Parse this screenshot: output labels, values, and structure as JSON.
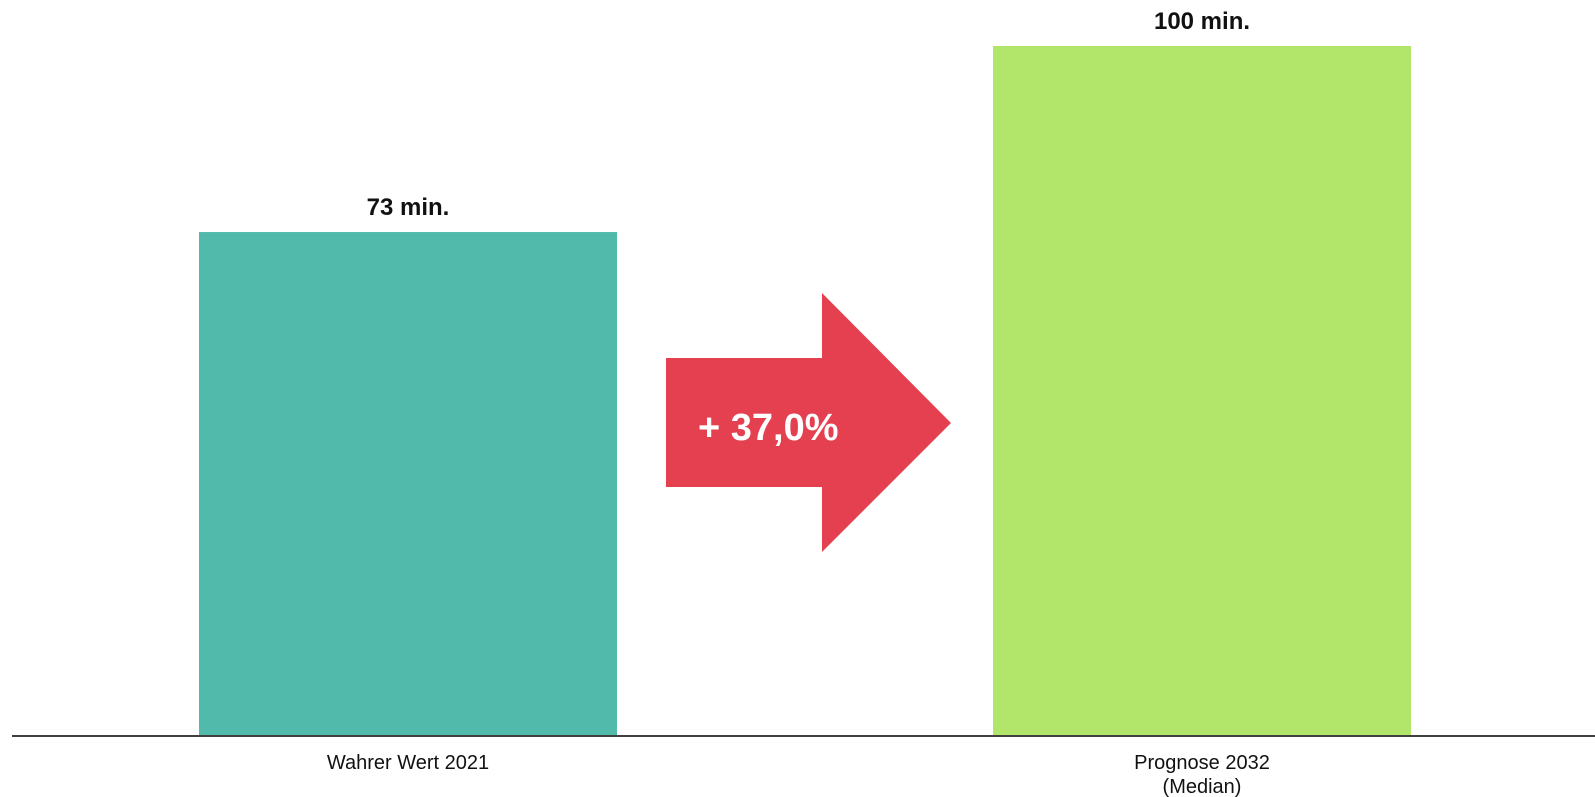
{
  "chart_data": {
    "type": "bar",
    "categories": [
      "Wahrer Wert 2021",
      "Prognose 2032\n(Median)"
    ],
    "values": [
      73,
      100
    ],
    "value_labels": [
      "73 min.",
      "100 min."
    ],
    "unit": "min.",
    "colors": [
      "#52baab",
      "#b2e66a"
    ],
    "axis_color": "#000000",
    "ylim": [
      0,
      100
    ],
    "grid": false,
    "legend": "none",
    "title": "",
    "xlabel": "",
    "ylabel": "",
    "annotation": {
      "type": "arrow",
      "text": "+ 37,0%",
      "color": "#e54050"
    }
  }
}
